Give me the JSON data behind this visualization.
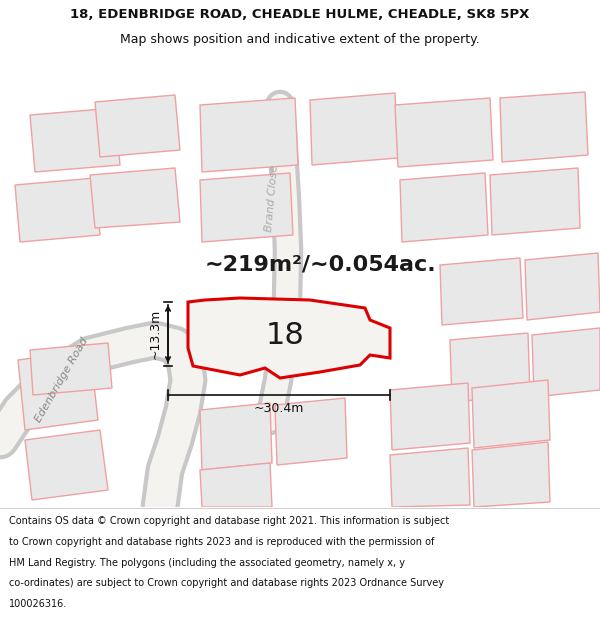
{
  "title_line1": "18, EDENBRIDGE ROAD, CHEADLE HULME, CHEADLE, SK8 5PX",
  "title_line2": "Map shows position and indicative extent of the property.",
  "area_text": "~219m²/~0.054ac.",
  "label_18": "18",
  "dim_width": "~30.4m",
  "dim_height": "~13.3m",
  "street_label1": "Edenbridge Road",
  "street_label2": "Brand Close",
  "footer_lines": [
    "Contains OS data © Crown copyright and database right 2021. This information is subject",
    "to Crown copyright and database rights 2023 and is reproduced with the permission of",
    "HM Land Registry. The polygons (including the associated geometry, namely x, y",
    "co-ordinates) are subject to Crown copyright and database rights 2023 Ordnance Survey",
    "100026316."
  ],
  "map_bg": "#f5f3f0",
  "building_edge": "#f0a0a0",
  "building_fill": "#e8e8e8",
  "road_color": "#d0d0d0",
  "road_outline": "#c8c8c8",
  "property_color": "#dd0000",
  "property_fill": "#f5f3f0",
  "title_fs": 9.5,
  "subtitle_fs": 9,
  "area_fs": 16,
  "label_fs": 22,
  "dim_fs": 9,
  "street_fs": 8,
  "footer_fs": 7
}
